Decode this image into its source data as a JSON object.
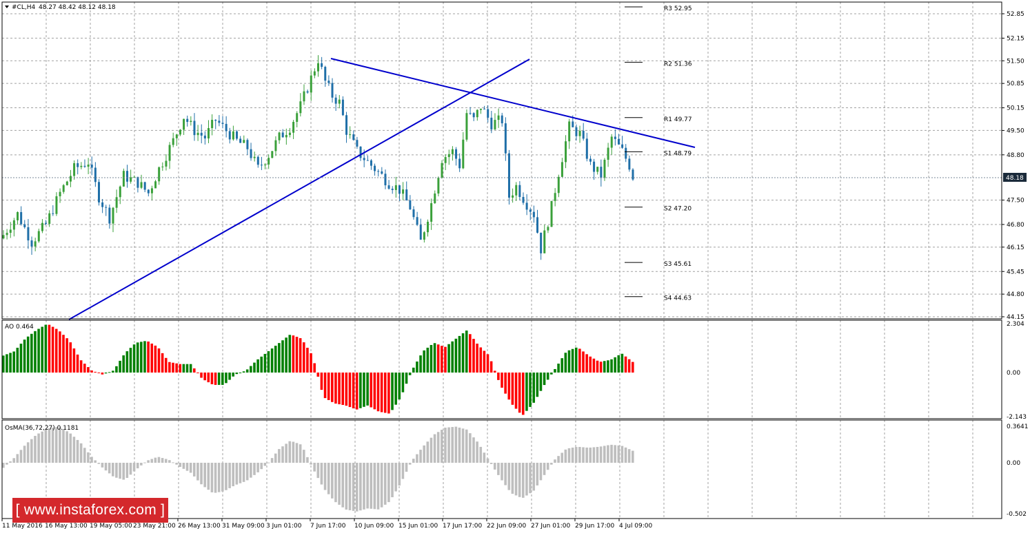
{
  "header": {
    "symbol": "#CL,H4",
    "ohlc": "48.27 48.42 48.12 48.18"
  },
  "current_price_label": "48.18",
  "pivots": [
    {
      "name": "R3",
      "value": 52.95
    },
    {
      "name": "R2",
      "value": 51.36
    },
    {
      "name": "R1",
      "value": 49.77
    },
    {
      "name": "S1",
      "value": 48.79
    },
    {
      "name": "S2",
      "value": 47.2
    },
    {
      "name": "S3",
      "value": 45.61
    },
    {
      "name": "S4",
      "value": 44.63
    }
  ],
  "price_ticks": [
    "52.85",
    "52.15",
    "51.50",
    "50.85",
    "50.15",
    "49.50",
    "48.80",
    "48.18",
    "47.50",
    "46.80",
    "46.15",
    "45.45",
    "44.80",
    "44.15"
  ],
  "ao": {
    "title": "AO 0.464",
    "ticks": [
      "2.304",
      "0.00",
      "-2.143"
    ]
  },
  "osma": {
    "title": "OsMA(36,72,27) 0.1181",
    "ticks": [
      "0.3641",
      "0.00",
      "-0.502"
    ]
  },
  "time_labels": [
    "11 May 2016",
    "16 May 13:00",
    "19 May 05:00",
    "23 May 21:00",
    "26 May 13:00",
    "31 May 09:00",
    "3 Jun 01:00",
    "7 Jun 17:00",
    "10 Jun 09:00",
    "15 Jun 01:00",
    "17 Jun 17:00",
    "22 Jun 09:00",
    "27 Jun 01:00",
    "29 Jun 17:00",
    "4 Jul 09:00"
  ],
  "watermark": "[ www.instaforex.com ]",
  "colors": {
    "bull": "#3aa03a",
    "bear": "#1f6fa8",
    "trendline": "#0000cc",
    "ao_up": "#008000",
    "ao_down": "#ff0000",
    "osma": "#bebebe",
    "grid": "#a0a0a0"
  },
  "chart_data": {
    "type": "candlestick",
    "symbol": "#CL",
    "timeframe": "H4",
    "ylim": [
      44.15,
      52.85
    ],
    "close_path": [
      [
        0,
        46.5
      ],
      [
        4,
        47.1
      ],
      [
        8,
        46.3
      ],
      [
        12,
        46.8
      ],
      [
        16,
        47.7
      ],
      [
        20,
        48.4
      ],
      [
        24,
        48.6
      ],
      [
        27,
        47.6
      ],
      [
        30,
        47.0
      ],
      [
        34,
        48.2
      ],
      [
        38,
        48.0
      ],
      [
        41,
        47.7
      ],
      [
        44,
        48.4
      ],
      [
        48,
        49.2
      ],
      [
        51,
        49.9
      ],
      [
        54,
        49.5
      ],
      [
        57,
        49.3
      ],
      [
        60,
        49.8
      ],
      [
        63,
        49.5
      ],
      [
        66,
        49.2
      ],
      [
        69,
        49.0
      ],
      [
        72,
        48.4
      ],
      [
        75,
        48.8
      ],
      [
        78,
        49.3
      ],
      [
        81,
        49.6
      ],
      [
        84,
        50.2
      ],
      [
        87,
        51.0
      ],
      [
        89,
        51.55
      ],
      [
        91,
        50.9
      ],
      [
        93,
        50.5
      ],
      [
        95,
        50.3
      ],
      [
        97,
        49.5
      ],
      [
        100,
        48.9
      ],
      [
        103,
        48.6
      ],
      [
        106,
        48.3
      ],
      [
        109,
        48.0
      ],
      [
        112,
        47.8
      ],
      [
        115,
        47.3
      ],
      [
        118,
        46.3
      ],
      [
        121,
        47.4
      ],
      [
        124,
        48.7
      ],
      [
        127,
        48.9
      ],
      [
        129,
        48.5
      ],
      [
        131,
        50.0
      ],
      [
        133,
        49.8
      ],
      [
        135,
        50.2
      ],
      [
        138,
        49.7
      ],
      [
        141,
        49.8
      ],
      [
        143,
        47.6
      ],
      [
        145,
        47.9
      ],
      [
        148,
        47.4
      ],
      [
        150,
        47.1
      ],
      [
        152,
        46.1
      ],
      [
        155,
        47.3
      ],
      [
        157,
        48.3
      ],
      [
        160,
        49.6
      ],
      [
        163,
        49.4
      ],
      [
        166,
        48.5
      ],
      [
        169,
        48.2
      ],
      [
        172,
        49.3
      ],
      [
        175,
        48.9
      ],
      [
        177,
        48.5
      ],
      [
        178,
        48.18
      ]
    ],
    "ao_values": [
      0.8,
      1.0,
      1.6,
      2.0,
      2.3,
      2.0,
      1.5,
      0.6,
      0.1,
      -0.1,
      0.1,
      0.9,
      1.4,
      1.5,
      1.2,
      0.5,
      0.4,
      0.4,
      -0.3,
      -0.6,
      -0.6,
      -0.1,
      0.1,
      0.6,
      1.0,
      1.4,
      1.8,
      1.6,
      0.8,
      -1.2,
      -1.5,
      -1.6,
      -1.8,
      -1.6,
      -1.9,
      -2.0,
      -1.2,
      0.1,
      1.0,
      1.4,
      1.2,
      1.6,
      2.0,
      1.3,
      0.8,
      -0.6,
      -1.5,
      -2.1,
      -1.5,
      -0.6,
      0.2,
      1.0,
      1.2,
      0.8,
      0.5,
      0.6,
      0.9,
      0.5
    ],
    "osma_values": [
      -0.05,
      0.05,
      0.18,
      0.28,
      0.34,
      0.36,
      0.3,
      0.2,
      0.06,
      -0.05,
      -0.14,
      -0.17,
      -0.07,
      0.02,
      0.06,
      0.03,
      -0.04,
      -0.1,
      -0.22,
      -0.3,
      -0.28,
      -0.22,
      -0.18,
      -0.1,
      0.0,
      0.14,
      0.22,
      0.18,
      -0.05,
      -0.25,
      -0.38,
      -0.46,
      -0.48,
      -0.45,
      -0.46,
      -0.38,
      -0.2,
      0.02,
      0.16,
      0.28,
      0.35,
      0.36,
      0.33,
      0.2,
      0.02,
      -0.15,
      -0.3,
      -0.35,
      -0.28,
      -0.12,
      0.04,
      0.14,
      0.16,
      0.15,
      0.16,
      0.18,
      0.17,
      0.12
    ]
  }
}
